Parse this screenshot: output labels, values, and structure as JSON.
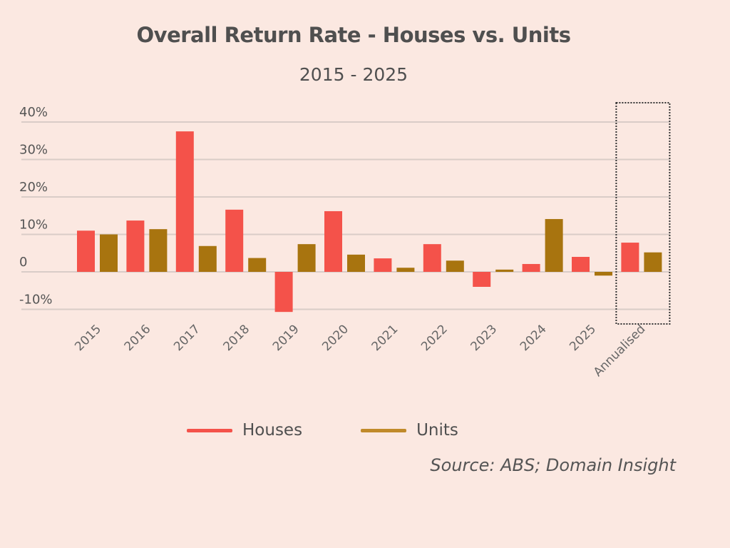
{
  "chart_data": {
    "type": "bar",
    "title": "Overall Return Rate - Houses vs. Units",
    "subtitle": "2015 - 2025",
    "xlabel": "",
    "ylabel": "",
    "categories": [
      "2015",
      "2016",
      "2017",
      "2018",
      "2019",
      "2020",
      "2021",
      "2022",
      "2023",
      "2024",
      "2025",
      "Annualised"
    ],
    "series": [
      {
        "name": "Houses",
        "color": "#f4524a",
        "values": [
          11.0,
          13.7,
          37.5,
          16.6,
          -10.7,
          16.2,
          3.6,
          7.4,
          -4.0,
          2.1,
          4.0,
          7.8
        ]
      },
      {
        "name": "Units",
        "color": "#a8740f",
        "values": [
          10.0,
          11.4,
          6.9,
          3.7,
          7.4,
          4.6,
          1.1,
          3.0,
          0.6,
          14.1,
          -1.0,
          5.2
        ]
      }
    ],
    "ylim": [
      -10,
      40
    ],
    "yticks": [
      {
        "value": 40,
        "label": "40%"
      },
      {
        "value": 30,
        "label": "30%"
      },
      {
        "value": 20,
        "label": "20%"
      },
      {
        "value": 10,
        "label": "10%"
      },
      {
        "value": 0,
        "label": "0"
      },
      {
        "value": -10,
        "label": "-10%"
      }
    ],
    "grid": true,
    "legend_position": "bottom",
    "highlighted_category": "Annualised",
    "source": "Source: ABS; Domain Insight"
  }
}
